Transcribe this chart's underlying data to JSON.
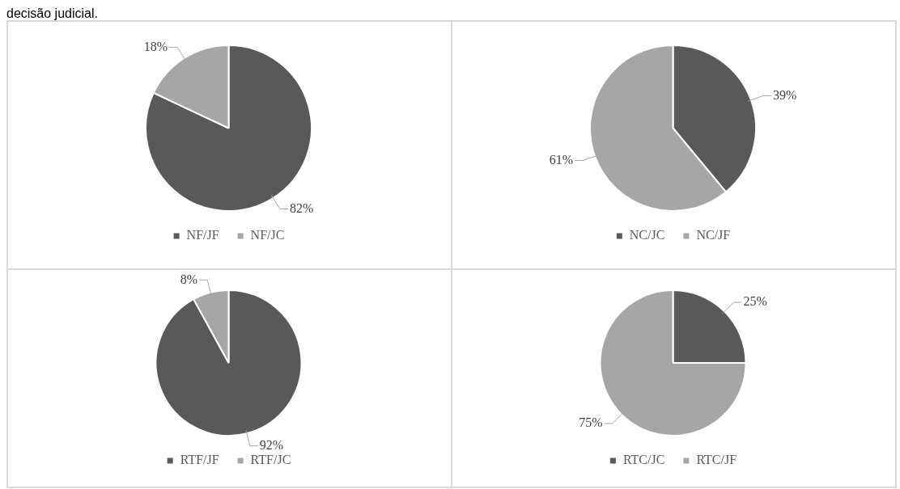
{
  "chart_data": [
    {
      "type": "pie",
      "annotations": [
        "decisão judicial."
      ],
      "categories": [
        "NF/JF",
        "NF/JC"
      ],
      "values": [
        82,
        18
      ],
      "colors": [
        "#595959",
        "#a6a6a6"
      ],
      "value_labels": [
        "82%",
        "18%"
      ],
      "legend": "bottom"
    },
    {
      "type": "pie",
      "categories": [
        "NC/JC",
        "NC/JF"
      ],
      "values": [
        39,
        61
      ],
      "colors": [
        "#595959",
        "#a6a6a6"
      ],
      "value_labels": [
        "39%",
        "61%"
      ],
      "legend": "bottom"
    },
    {
      "type": "pie",
      "categories": [
        "RTF/JF",
        "RTF/JC"
      ],
      "values": [
        92,
        8
      ],
      "colors": [
        "#595959",
        "#a6a6a6"
      ],
      "value_labels": [
        "92%",
        "8%"
      ],
      "legend": "bottom"
    },
    {
      "type": "pie",
      "categories": [
        "RTC/JC",
        "RTC/JF"
      ],
      "values": [
        25,
        75
      ],
      "colors": [
        "#595959",
        "#a6a6a6"
      ],
      "value_labels": [
        "25%",
        "75%"
      ],
      "legend": "bottom"
    }
  ]
}
